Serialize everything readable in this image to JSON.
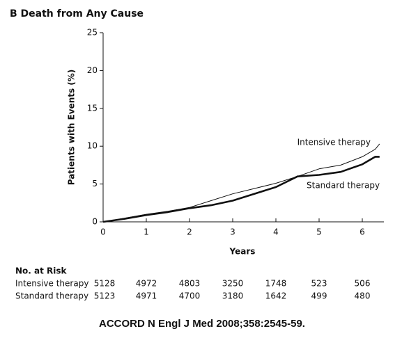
{
  "chart_data": {
    "type": "line",
    "title": "B  Death from Any Cause",
    "ylabel": "Patients with Events (%)",
    "xlabel": "Years",
    "x": [
      0,
      0.5,
      1,
      1.5,
      2,
      2.5,
      3,
      3.5,
      4,
      4.5,
      5,
      5.5,
      6,
      6.3,
      6.4
    ],
    "series": [
      {
        "name": "Intensive therapy",
        "color": "#111111",
        "width": 1,
        "values": [
          0,
          0.5,
          1.0,
          1.4,
          1.9,
          2.8,
          3.7,
          4.4,
          5.1,
          6.0,
          7.0,
          7.5,
          8.6,
          9.6,
          10.3
        ]
      },
      {
        "name": "Standard therapy",
        "color": "#111111",
        "width": 2.6,
        "values": [
          0,
          0.4,
          0.9,
          1.3,
          1.8,
          2.2,
          2.8,
          3.7,
          4.6,
          6.0,
          6.2,
          6.6,
          7.6,
          8.6,
          8.6
        ]
      }
    ],
    "xlim": [
      0,
      6.5
    ],
    "xticks": [
      0,
      1,
      2,
      3,
      4,
      5,
      6
    ],
    "ylim": [
      0,
      25
    ],
    "yticks": [
      0,
      5,
      10,
      15,
      20,
      25
    ],
    "grid": false,
    "risk_table": {
      "title": "No. at Risk",
      "rows": [
        {
          "label": "Intensive therapy",
          "values": [
            5128,
            4972,
            4803,
            3250,
            1748,
            523,
            506
          ]
        },
        {
          "label": "Standard therapy",
          "values": [
            5123,
            4971,
            4700,
            3180,
            1642,
            499,
            480
          ]
        }
      ]
    },
    "footer": "ACCORD N Engl J Med 2008;358:2545-59."
  }
}
